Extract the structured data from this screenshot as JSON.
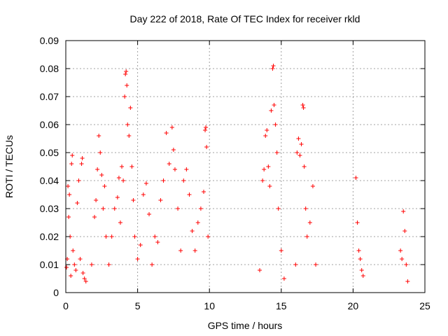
{
  "chart_data": {
    "type": "scatter",
    "title": "Day 222 of 2018, Rate Of TEC Index for receiver rkld",
    "xlabel": "GPS time / hours",
    "ylabel": "ROTI / TECUs",
    "xlim": [
      0,
      25
    ],
    "ylim": [
      0,
      0.09
    ],
    "xticks": [
      "0",
      "5",
      "10",
      "15",
      "20",
      "25"
    ],
    "yticks": [
      "0",
      "0.01",
      "0.02",
      "0.03",
      "0.04",
      "0.05",
      "0.06",
      "0.07",
      "0.08",
      "0.09"
    ],
    "grid": true,
    "marker": "+",
    "color": "#ff0000",
    "series": [
      {
        "points": [
          [
            0.05,
            0.009
          ],
          [
            0.1,
            0.012
          ],
          [
            0.15,
            0.038
          ],
          [
            0.2,
            0.027
          ],
          [
            0.25,
            0.035
          ],
          [
            0.3,
            0.02
          ],
          [
            0.35,
            0.006
          ],
          [
            0.4,
            0.046
          ],
          [
            0.45,
            0.049
          ],
          [
            0.5,
            0.015
          ],
          [
            0.6,
            0.01
          ],
          [
            0.7,
            0.008
          ],
          [
            0.8,
            0.032
          ],
          [
            0.9,
            0.04
          ],
          [
            1.0,
            0.012
          ],
          [
            1.1,
            0.046
          ],
          [
            1.15,
            0.048
          ],
          [
            1.2,
            0.007
          ],
          [
            1.3,
            0.005
          ],
          [
            1.4,
            0.004
          ],
          [
            1.8,
            0.01
          ],
          [
            2.0,
            0.027
          ],
          [
            2.1,
            0.033
          ],
          [
            2.2,
            0.044
          ],
          [
            2.3,
            0.056
          ],
          [
            2.4,
            0.05
          ],
          [
            2.5,
            0.042
          ],
          [
            2.6,
            0.03
          ],
          [
            2.7,
            0.038
          ],
          [
            2.8,
            0.02
          ],
          [
            3.0,
            0.01
          ],
          [
            3.2,
            0.02
          ],
          [
            3.4,
            0.03
          ],
          [
            3.6,
            0.034
          ],
          [
            3.7,
            0.041
          ],
          [
            3.8,
            0.025
          ],
          [
            3.9,
            0.045
          ],
          [
            4.0,
            0.04
          ],
          [
            4.1,
            0.07
          ],
          [
            4.15,
            0.078
          ],
          [
            4.2,
            0.079
          ],
          [
            4.25,
            0.074
          ],
          [
            4.3,
            0.06
          ],
          [
            4.4,
            0.056
          ],
          [
            4.5,
            0.066
          ],
          [
            4.6,
            0.045
          ],
          [
            4.7,
            0.033
          ],
          [
            4.8,
            0.02
          ],
          [
            5.0,
            0.012
          ],
          [
            5.2,
            0.017
          ],
          [
            5.4,
            0.035
          ],
          [
            5.6,
            0.039
          ],
          [
            5.8,
            0.028
          ],
          [
            6.0,
            0.01
          ],
          [
            6.2,
            0.02
          ],
          [
            6.4,
            0.018
          ],
          [
            6.6,
            0.033
          ],
          [
            6.8,
            0.04
          ],
          [
            7.0,
            0.057
          ],
          [
            7.2,
            0.046
          ],
          [
            7.4,
            0.059
          ],
          [
            7.5,
            0.051
          ],
          [
            7.6,
            0.044
          ],
          [
            7.8,
            0.03
          ],
          [
            8.0,
            0.015
          ],
          [
            8.2,
            0.04
          ],
          [
            8.4,
            0.044
          ],
          [
            8.6,
            0.035
          ],
          [
            8.8,
            0.022
          ],
          [
            9.0,
            0.015
          ],
          [
            9.2,
            0.025
          ],
          [
            9.4,
            0.03
          ],
          [
            9.6,
            0.036
          ],
          [
            9.7,
            0.058
          ],
          [
            9.75,
            0.059
          ],
          [
            9.8,
            0.052
          ],
          [
            9.9,
            0.02
          ],
          [
            13.5,
            0.008
          ],
          [
            13.7,
            0.04
          ],
          [
            13.8,
            0.044
          ],
          [
            13.9,
            0.056
          ],
          [
            14.0,
            0.058
          ],
          [
            14.1,
            0.045
          ],
          [
            14.2,
            0.038
          ],
          [
            14.3,
            0.065
          ],
          [
            14.4,
            0.08
          ],
          [
            14.45,
            0.081
          ],
          [
            14.5,
            0.067
          ],
          [
            14.6,
            0.06
          ],
          [
            14.7,
            0.05
          ],
          [
            14.8,
            0.03
          ],
          [
            15.0,
            0.015
          ],
          [
            15.2,
            0.005
          ],
          [
            16.0,
            0.01
          ],
          [
            16.1,
            0.05
          ],
          [
            16.2,
            0.055
          ],
          [
            16.3,
            0.049
          ],
          [
            16.4,
            0.053
          ],
          [
            16.5,
            0.067
          ],
          [
            16.55,
            0.066
          ],
          [
            16.6,
            0.045
          ],
          [
            16.7,
            0.03
          ],
          [
            16.8,
            0.02
          ],
          [
            17.0,
            0.025
          ],
          [
            17.2,
            0.038
          ],
          [
            17.4,
            0.01
          ],
          [
            20.2,
            0.041
          ],
          [
            20.3,
            0.025
          ],
          [
            20.4,
            0.015
          ],
          [
            20.5,
            0.012
          ],
          [
            20.6,
            0.008
          ],
          [
            20.7,
            0.006
          ],
          [
            23.3,
            0.015
          ],
          [
            23.4,
            0.012
          ],
          [
            23.5,
            0.029
          ],
          [
            23.6,
            0.022
          ],
          [
            23.7,
            0.01
          ],
          [
            23.8,
            0.004
          ]
        ]
      }
    ]
  }
}
